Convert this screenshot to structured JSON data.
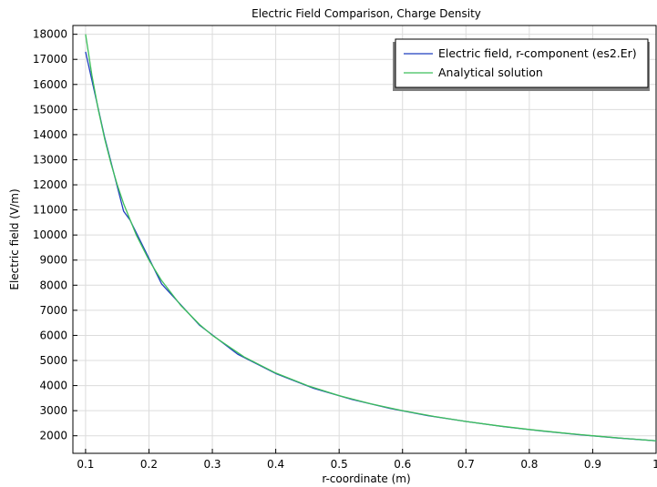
{
  "chart_data": {
    "type": "line",
    "title": "Electric Field Comparison, Charge Density",
    "xlabel": "r-coordinate (m)",
    "ylabel": "Electric field (V/m)",
    "xlim": [
      0.08,
      1.0
    ],
    "ylim": [
      1300,
      18350
    ],
    "xticks": [
      "0.1",
      "0.2",
      "0.3",
      "0.4",
      "0.5",
      "0.6",
      "0.7",
      "0.8",
      "0.9",
      "1"
    ],
    "yticks": [
      "2000",
      "3000",
      "4000",
      "5000",
      "6000",
      "7000",
      "8000",
      "9000",
      "10000",
      "11000",
      "12000",
      "13000",
      "14000",
      "15000",
      "16000",
      "17000",
      "18000"
    ],
    "grid": true,
    "legend_position": "top-right",
    "series": [
      {
        "name": "Electric field, r-component (es2.Er)",
        "color": "#1f3fbf",
        "points": [
          [
            0.1,
            17300
          ],
          [
            0.13,
            13900
          ],
          [
            0.16,
            10950
          ],
          [
            0.17,
            10600
          ],
          [
            0.22,
            8050
          ],
          [
            0.28,
            6400
          ],
          [
            0.34,
            5250
          ],
          [
            0.4,
            4480
          ],
          [
            0.46,
            3890
          ],
          [
            0.52,
            3450
          ],
          [
            0.58,
            3090
          ],
          [
            0.64,
            2800
          ],
          [
            0.7,
            2570
          ],
          [
            0.76,
            2360
          ],
          [
            0.82,
            2190
          ],
          [
            0.88,
            2040
          ],
          [
            0.94,
            1910
          ],
          [
            1.0,
            1800
          ]
        ]
      },
      {
        "name": "Analytical solution",
        "color": "#3cbf5a",
        "points": [
          [
            0.1,
            18000
          ],
          [
            0.11,
            16364
          ],
          [
            0.12,
            15000
          ],
          [
            0.13,
            13846
          ],
          [
            0.14,
            12857
          ],
          [
            0.15,
            12000
          ],
          [
            0.16,
            11250
          ],
          [
            0.18,
            10000
          ],
          [
            0.2,
            9000
          ],
          [
            0.22,
            8182
          ],
          [
            0.25,
            7200
          ],
          [
            0.28,
            6429
          ],
          [
            0.3,
            6000
          ],
          [
            0.35,
            5143
          ],
          [
            0.4,
            4500
          ],
          [
            0.45,
            4000
          ],
          [
            0.5,
            3600
          ],
          [
            0.55,
            3273
          ],
          [
            0.6,
            3000
          ],
          [
            0.65,
            2769
          ],
          [
            0.7,
            2571
          ],
          [
            0.75,
            2400
          ],
          [
            0.8,
            2250
          ],
          [
            0.85,
            2118
          ],
          [
            0.9,
            2000
          ],
          [
            0.95,
            1895
          ],
          [
            1.0,
            1800
          ]
        ]
      }
    ]
  }
}
